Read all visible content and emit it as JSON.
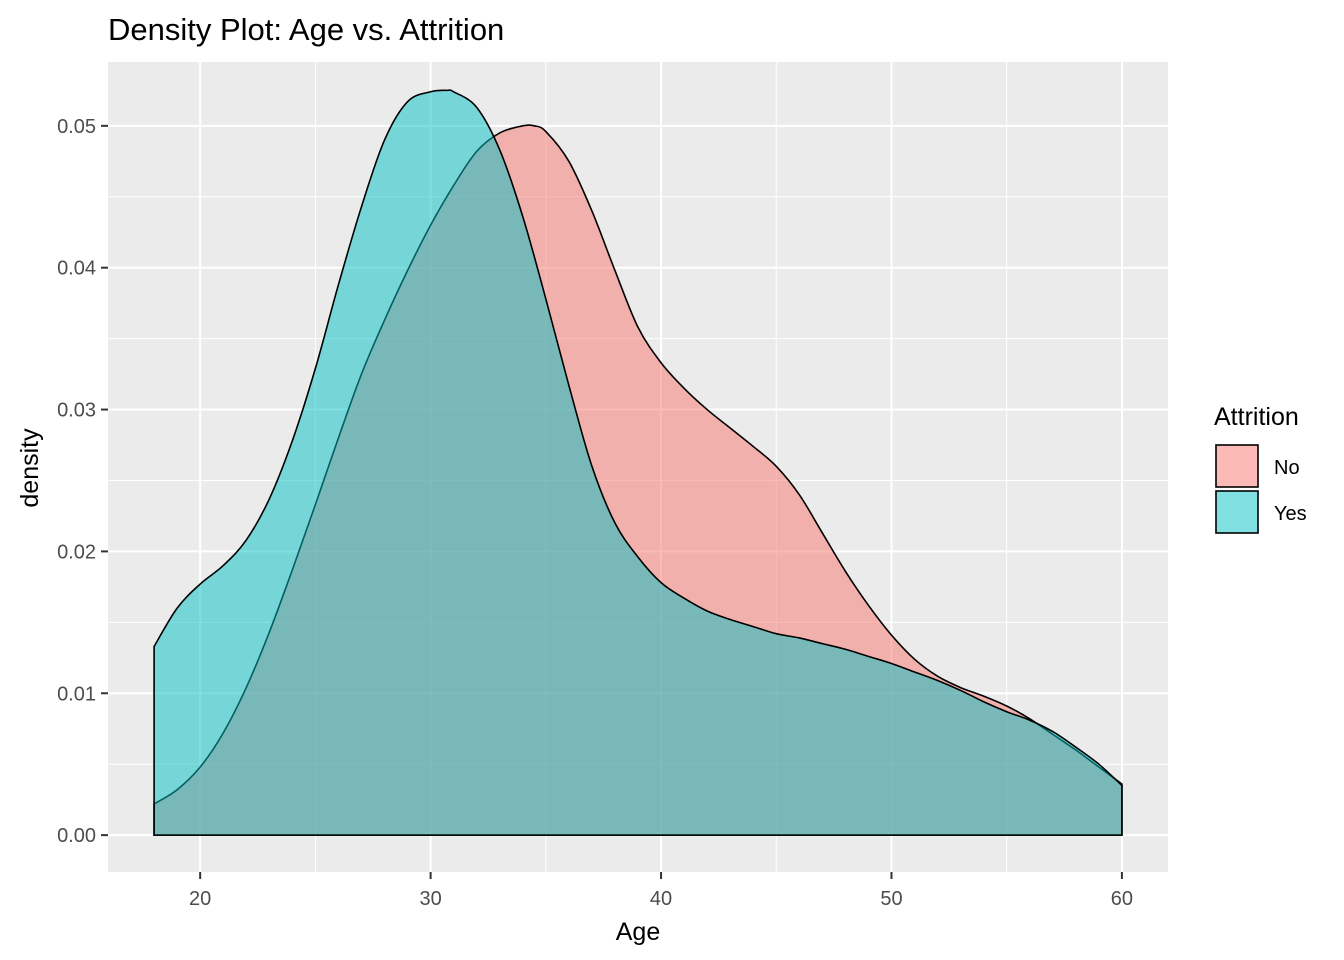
{
  "chart_data": {
    "type": "area",
    "title": "Density Plot: Age vs. Attrition",
    "xlabel": "Age",
    "ylabel": "density",
    "xlim": [
      16,
      62
    ],
    "ylim": [
      -0.0026,
      0.0545
    ],
    "xticks": [
      20,
      30,
      40,
      50,
      60
    ],
    "xtick_labels": [
      "20",
      "30",
      "40",
      "50",
      "60"
    ],
    "yticks": [
      0.0,
      0.01,
      0.02,
      0.03,
      0.04,
      0.05
    ],
    "ytick_labels": [
      "0.00",
      "0.01",
      "0.02",
      "0.03",
      "0.04",
      "0.05"
    ],
    "grid": true,
    "legend": {
      "title": "Attrition",
      "placement": "right"
    },
    "colors": {
      "No": "#F8766D",
      "Yes": "#00BFC4",
      "panel": "#EBEBEB",
      "grid": "#FFFFFF",
      "outline": "#000000"
    },
    "fill_opacity": 0.5,
    "series": [
      {
        "name": "No",
        "x": [
          18,
          19,
          20,
          21,
          22,
          23,
          24,
          25,
          26,
          27,
          28,
          29,
          30,
          31,
          32,
          33,
          34,
          34.5,
          35,
          36,
          37,
          38,
          39,
          40,
          41,
          42,
          43,
          44,
          45,
          46,
          47,
          48,
          49,
          50,
          51,
          52,
          53,
          54,
          55,
          56,
          57,
          58,
          59,
          60
        ],
        "y": [
          0.0022,
          0.0032,
          0.0048,
          0.0072,
          0.0104,
          0.0143,
          0.0187,
          0.0233,
          0.028,
          0.0325,
          0.0363,
          0.0398,
          0.043,
          0.0458,
          0.0482,
          0.0495,
          0.05,
          0.05,
          0.0496,
          0.0475,
          0.044,
          0.0398,
          0.0358,
          0.0333,
          0.0315,
          0.03,
          0.0287,
          0.0274,
          0.026,
          0.024,
          0.0213,
          0.0186,
          0.0162,
          0.0141,
          0.0124,
          0.0112,
          0.0104,
          0.0098,
          0.0091,
          0.0082,
          0.0071,
          0.006,
          0.0048,
          0.0036
        ]
      },
      {
        "name": "Yes",
        "x": [
          18,
          19,
          20,
          21,
          22,
          23,
          24,
          25,
          26,
          27,
          28,
          29,
          30,
          30.7,
          31,
          32,
          33,
          34,
          35,
          36,
          37,
          38,
          39,
          40,
          41,
          42,
          43,
          44,
          45,
          46,
          47,
          48,
          49,
          50,
          51,
          52,
          53,
          54,
          55,
          56,
          57,
          58,
          59,
          60
        ],
        "y": [
          0.0133,
          0.016,
          0.0177,
          0.019,
          0.0208,
          0.0237,
          0.0278,
          0.0329,
          0.0388,
          0.0443,
          0.049,
          0.0517,
          0.0524,
          0.0525,
          0.0524,
          0.0513,
          0.0483,
          0.0436,
          0.0378,
          0.0317,
          0.026,
          0.022,
          0.0196,
          0.0178,
          0.0167,
          0.0158,
          0.0152,
          0.0147,
          0.0142,
          0.0139,
          0.0135,
          0.0131,
          0.0126,
          0.0121,
          0.0115,
          0.0109,
          0.0102,
          0.0094,
          0.0087,
          0.0081,
          0.0073,
          0.0062,
          0.005,
          0.0035
        ]
      }
    ]
  }
}
